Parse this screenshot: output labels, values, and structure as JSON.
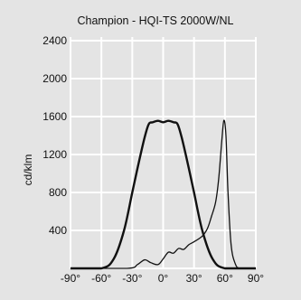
{
  "chart_data": {
    "type": "line",
    "title": "Champion - HQI-TS 2000W/NL",
    "xlabel": "",
    "ylabel": "cd/klm",
    "xlim": [
      -90,
      90
    ],
    "ylim": [
      0,
      2400
    ],
    "x_ticks": [
      -90,
      -60,
      -30,
      0,
      30,
      60,
      90
    ],
    "x_tick_labels": [
      "-90°",
      "-60°",
      "-30°",
      "0°",
      "30°",
      "60°",
      "90°"
    ],
    "y_ticks": [
      400,
      800,
      1200,
      1600,
      2000,
      2400
    ],
    "y_tick_labels": [
      "400",
      "800",
      "1200",
      "1600",
      "2000",
      "2400"
    ],
    "grid": true,
    "colors": {
      "background": "#e4e4e4",
      "grid": "#ffffff",
      "line": "#111111",
      "text": "#111111"
    },
    "series": [
      {
        "style": "thick",
        "points": [
          [
            -90,
            0
          ],
          [
            -60,
            0
          ],
          [
            -48,
            100
          ],
          [
            -38,
            400
          ],
          [
            -30,
            800
          ],
          [
            -24,
            1100
          ],
          [
            -18,
            1380
          ],
          [
            -14,
            1520
          ],
          [
            -10,
            1540
          ],
          [
            -5,
            1555
          ],
          [
            0,
            1540
          ],
          [
            5,
            1555
          ],
          [
            10,
            1540
          ],
          [
            14,
            1520
          ],
          [
            18,
            1380
          ],
          [
            24,
            1100
          ],
          [
            30,
            800
          ],
          [
            38,
            400
          ],
          [
            48,
            100
          ],
          [
            60,
            0
          ],
          [
            90,
            0
          ]
        ]
      },
      {
        "style": "thin",
        "points": [
          [
            -90,
            0
          ],
          [
            -35,
            0
          ],
          [
            -25,
            40
          ],
          [
            -18,
            90
          ],
          [
            -12,
            60
          ],
          [
            -5,
            40
          ],
          [
            0,
            100
          ],
          [
            5,
            170
          ],
          [
            10,
            160
          ],
          [
            15,
            210
          ],
          [
            20,
            200
          ],
          [
            25,
            250
          ],
          [
            30,
            280
          ],
          [
            38,
            340
          ],
          [
            43,
            420
          ],
          [
            47,
            550
          ],
          [
            51,
            700
          ],
          [
            54,
            950
          ],
          [
            57,
            1350
          ],
          [
            59,
            1560
          ],
          [
            61,
            1400
          ],
          [
            63,
            800
          ],
          [
            66,
            250
          ],
          [
            70,
            50
          ],
          [
            75,
            0
          ],
          [
            90,
            0
          ]
        ]
      }
    ]
  }
}
